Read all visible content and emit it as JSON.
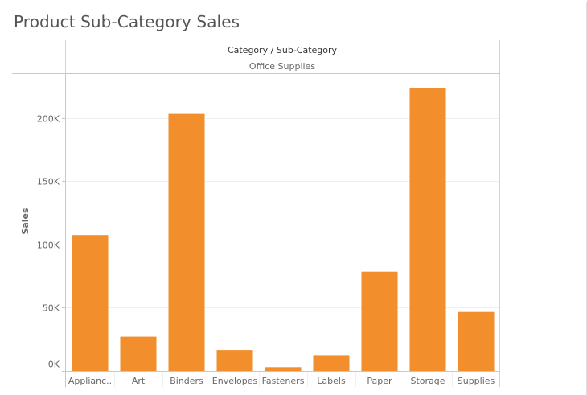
{
  "page": {
    "title": "Product Sub-Category Sales"
  },
  "header": {
    "column_title": "Category / Sub-Category",
    "category": "Office Supplies"
  },
  "colors": {
    "bar": "#f28e2b",
    "grid": "#f0f0f0",
    "axis": "#c8c8c8",
    "text": "#666666",
    "title": "#555555"
  },
  "chart_data": {
    "type": "bar",
    "title": "Product Sub-Category Sales",
    "xlabel": "",
    "ylabel": "Sales",
    "categories": [
      "Applianc..",
      "Art",
      "Binders",
      "Envelopes",
      "Fasteners",
      "Labels",
      "Paper",
      "Storage",
      "Supplies"
    ],
    "values": [
      107500,
      27000,
      203400,
      16500,
      3000,
      12500,
      78500,
      223800,
      46700
    ],
    "ylim": [
      0,
      235000
    ],
    "yticks": [
      0,
      50000,
      100000,
      150000,
      200000
    ],
    "ytick_labels": [
      "0K",
      "50K",
      "100K",
      "150K",
      "200K"
    ],
    "grid": true,
    "legend": "none"
  }
}
